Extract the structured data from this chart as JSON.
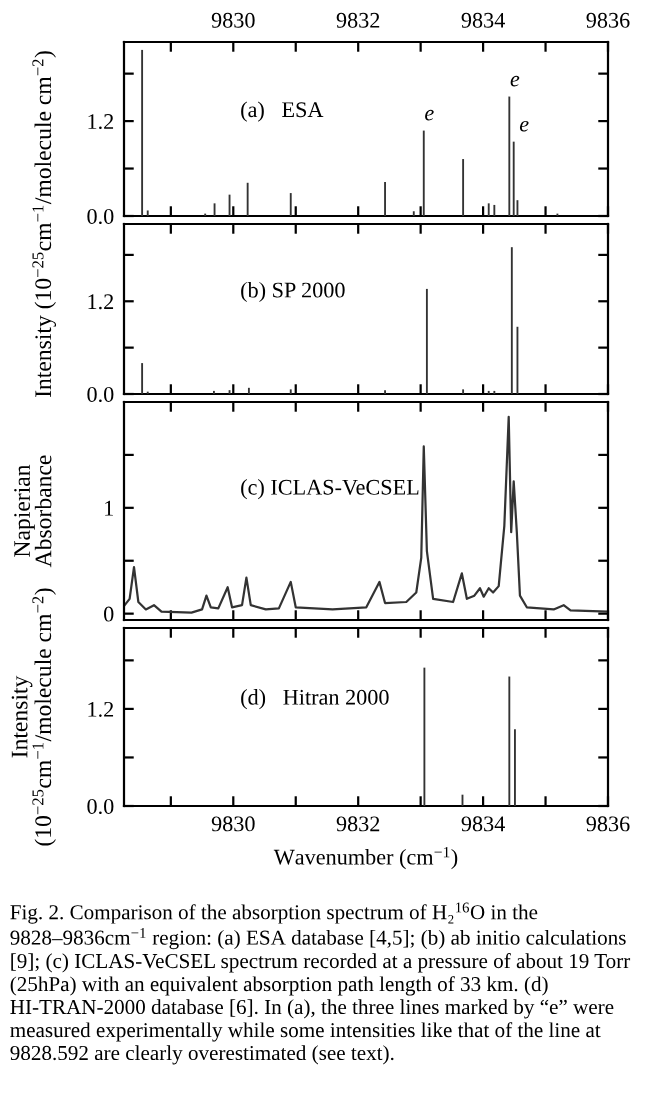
{
  "chart_data": [
    {
      "type": "bar",
      "x": [
        9828.54,
        9828.63,
        9829.55,
        9829.7,
        9829.94,
        9830.23,
        9830.92,
        9832.43,
        9832.89,
        9833.05,
        9833.68,
        9834.09,
        9834.18,
        9834.42,
        9834.49,
        9834.55,
        9835.19
      ],
      "series": [
        {
          "color": "#333333",
          "values": [
            2.1,
            0.07,
            0.03,
            0.16,
            0.27,
            0.42,
            0.29,
            0.43,
            0.06,
            1.08,
            0.72,
            0.16,
            0.14,
            1.51,
            0.94,
            0.2,
            0.03
          ]
        }
      ],
      "xlim": [
        9828.25,
        9836
      ],
      "xticks": [
        {
          "value": 9829,
          "label": null
        },
        9830,
        {
          "value": 9831,
          "label": null
        },
        9832,
        {
          "value": 9833,
          "label": null
        },
        9834,
        {
          "value": 9835,
          "label": null
        },
        9836
      ],
      "x2lim": [
        9828.25,
        9836
      ],
      "x2ticks": [
        {
          "value": 9829,
          "label": null
        },
        9830,
        {
          "value": 9831,
          "label": null
        },
        9832,
        {
          "value": 9833,
          "label": null
        },
        9834,
        {
          "value": 9835,
          "label": null
        },
        9836
      ],
      "ylim": [
        0,
        2.2
      ],
      "yticks": [
        {
          "value": 0,
          "label": "0.0"
        },
        {
          "value": 0.6,
          "label": null
        },
        1.2,
        {
          "value": 1.8,
          "label": null
        }
      ],
      "tick_labels": "y",
      "annotations": [
        "(a)   ESA",
        {
          "text": "e",
          "x": 9833.05,
          "y": 1.08
        },
        {
          "text": "e",
          "x": 9834.42,
          "y": 1.51
        },
        {
          "text": "e",
          "x": 9834.49,
          "y": 0.94
        }
      ]
    },
    {
      "type": "bar",
      "ylabel": "Intensity (10$^{−25}$cm$^{−1}$/molecule cm$^{−2}$)",
      "x": [
        9828.54,
        9828.63,
        9829.69,
        9829.94,
        9830.25,
        9830.92,
        9832.43,
        9833.1,
        9833.68,
        9834.09,
        9834.18,
        9834.46,
        9834.55
      ],
      "series": [
        {
          "color": "#333333",
          "values": [
            0.4,
            0.03,
            0.04,
            0.05,
            0.08,
            0.06,
            0.05,
            1.36,
            0.06,
            0.04,
            0.04,
            1.9,
            0.87
          ]
        }
      ],
      "xlim": [
        9828.25,
        9836
      ],
      "xticks": [
        9829,
        9830,
        9831,
        9832,
        9833,
        9834,
        9835,
        9836
      ],
      "ylim": [
        0,
        2.2
      ],
      "yticks": [
        {
          "value": 0,
          "label": "0.0"
        },
        {
          "value": 0.6,
          "label": null
        },
        1.2,
        {
          "value": 1.8,
          "label": null
        }
      ],
      "tick_labels": "y",
      "annotations": [
        "(b) SP 2000"
      ]
    },
    {
      "type": "line",
      "ylabel": "Napierian\nAbsorbance",
      "x": [
        9828.26,
        9828.34,
        9828.41,
        9828.48,
        9828.6,
        9828.73,
        9828.85,
        9829.33,
        9829.5,
        9829.57,
        9829.64,
        9829.76,
        9829.91,
        9829.98,
        9830.14,
        9830.21,
        9830.28,
        9830.52,
        9830.73,
        9830.92,
        9831.0,
        9831.59,
        9832.13,
        9832.34,
        9832.43,
        9832.77,
        9832.93,
        9833.01,
        9833.05,
        9833.1,
        9833.2,
        9833.52,
        9833.66,
        9833.74,
        9833.86,
        9833.95,
        9834.01,
        9834.09,
        9834.16,
        9834.25,
        9834.34,
        9834.41,
        9834.45,
        9834.49,
        9834.54,
        9834.59,
        9834.7,
        9835.13,
        9835.29,
        9835.4,
        9836.0
      ],
      "series": [
        {
          "color": "#333333",
          "values": [
            0.08,
            0.14,
            0.44,
            0.11,
            0.04,
            0.08,
            0.02,
            0.01,
            0.04,
            0.17,
            0.06,
            0.05,
            0.25,
            0.06,
            0.08,
            0.34,
            0.08,
            0.04,
            0.05,
            0.3,
            0.06,
            0.04,
            0.06,
            0.3,
            0.1,
            0.11,
            0.2,
            0.53,
            1.58,
            0.59,
            0.14,
            0.11,
            0.38,
            0.14,
            0.17,
            0.24,
            0.16,
            0.24,
            0.2,
            0.26,
            0.83,
            1.86,
            0.77,
            1.25,
            0.77,
            0.17,
            0.06,
            0.04,
            0.08,
            0.03,
            0.02
          ]
        }
      ],
      "xlim": [
        9828.25,
        9836
      ],
      "xticks": [
        9829,
        9830,
        9831,
        9832,
        9833,
        9834,
        9835,
        9836
      ],
      "ylim": [
        -0.06,
        2.0
      ],
      "yticks": [
        0,
        {
          "value": 0.5,
          "label": null
        },
        1,
        {
          "value": 1.5,
          "label": null
        }
      ],
      "tick_labels": "y",
      "annotations": [
        "(c) ICLAS-VeCSEL"
      ]
    },
    {
      "type": "bar",
      "xlabel": "Wavenumber (cm$^{−1}$)",
      "ylabel": "Intensity\n(10$^{−25}$cm$^{−1}$/molecule cm$^{−2}$)",
      "x": [
        9833.06,
        9833.67,
        9834.42,
        9834.51
      ],
      "series": [
        {
          "color": "#333333",
          "values": [
            1.71,
            0.14,
            1.6,
            0.95
          ]
        }
      ],
      "xlim": [
        9828.25,
        9836
      ],
      "xticks": [
        {
          "value": 9829,
          "label": null
        },
        9830,
        {
          "value": 9831,
          "label": null
        },
        9832,
        {
          "value": 9833,
          "label": null
        },
        9834,
        {
          "value": 9835,
          "label": null
        },
        9836
      ],
      "ylim": [
        0,
        2.2
      ],
      "yticks": [
        {
          "value": 0,
          "label": "0.0"
        },
        {
          "value": 0.6,
          "label": null
        },
        1.2,
        {
          "value": 1.8,
          "label": null
        }
      ],
      "annotations": [
        "(d)   Hitran 2000",
        "Fig. 2. Comparison of the absorption spectrum of H₂$^{16}$O in the 9828–9836cm$^{−1}$ region: (a) ESA database [4,5]; (b) ab initio calculations [9]; (c) ICLAS-VeCSEL spectrum recorded at a pressure of about 19 Torr (25hPa) with an equivalent absorption path length of 33 km. (d) HI-TRAN-2000 database [6]. In (a), the three lines marked by “e” were measured experimentally while some intensities like that of the line at 9828.592 are clearly overestimated (see text)."
      ]
    }
  ]
}
